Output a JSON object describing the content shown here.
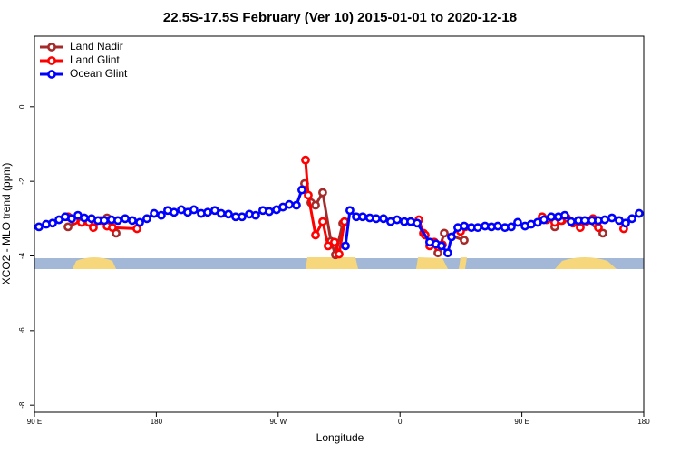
{
  "chart_data": {
    "type": "line",
    "title": "22.5S-17.5S February (Ver 10)   2015-01-01 to 2020-12-18",
    "x_label": "Longitude",
    "y_label": "XCO2 - MLO trend (ppm)",
    "xlim": [
      90,
      540
    ],
    "xticks": [
      {
        "value": 90,
        "label": "90 E"
      },
      {
        "value": 180,
        "label": "180"
      },
      {
        "value": 270,
        "label": "90 W"
      },
      {
        "value": 360,
        "label": "0"
      },
      {
        "value": 450,
        "label": "90 E"
      },
      {
        "value": 540,
        "label": "180"
      }
    ],
    "ylim": [
      -8.19,
      1.89
    ],
    "yticks": [
      0,
      -2,
      -4,
      -6,
      -8
    ],
    "legend": "top-left",
    "series": [
      {
        "name": "Land Nadir",
        "color": "#a52a2a",
        "x": [
          114.8,
          124.8,
          143.6,
          150.3,
          null,
          289.5,
          294.2,
          297.6,
          302.9,
          309.0,
          312.3,
          317.7,
          null,
          388.0,
          392.7,
          407.4,
          null,
          474.3,
          479.7,
          493.1,
          504.5,
          509.8
        ],
        "values": [
          -3.22,
          -3.05,
          -2.98,
          -3.39,
          null,
          -2.06,
          -2.57,
          -2.64,
          -2.3,
          -3.61,
          -3.97,
          -3.13,
          null,
          -3.92,
          -3.39,
          -3.58,
          null,
          -3.22,
          -3.05,
          -3.05,
          -3.13,
          -3.39
        ]
      },
      {
        "name": "Land Glint",
        "color": "#ff0000",
        "x": [
          114.8,
          119.5,
          124.8,
          130.2,
          133.5,
          138.9,
          143.6,
          147.6,
          165.7,
          null,
          290.2,
          292.2,
          297.6,
          302.9,
          306.9,
          311.6,
          315.0,
          319.0,
          null,
          373.9,
          377.3,
          378.6,
          381.9,
          385.3,
          388.0,
          391.3,
          null,
          404.7,
          408.1,
          null,
          465.0,
          468.3,
          474.3,
          479.0,
          483.0,
          487.7,
          493.1,
          497.8,
          502.5,
          506.5,
          null,
          525.2
        ],
        "values": [
          -2.95,
          -3.05,
          -3.1,
          -3.1,
          -3.24,
          -3.05,
          -3.2,
          -3.24,
          -3.27,
          null,
          -1.43,
          -2.37,
          -3.44,
          -3.08,
          -3.73,
          -3.63,
          -3.95,
          -3.08,
          null,
          -3.03,
          -3.39,
          -3.44,
          -3.73,
          -3.63,
          -3.75,
          -3.7,
          null,
          -3.34,
          -3.22,
          null,
          -2.95,
          -3.03,
          -3.1,
          -3.05,
          -2.98,
          -3.12,
          -3.24,
          -3.07,
          -3.0,
          -3.24,
          null,
          -3.27
        ]
      },
      {
        "name": "Ocean Glint",
        "color": "#0000ff",
        "x": [
          93.3,
          98.7,
          103.4,
          108.1,
          112.8,
          117.5,
          122.1,
          126.8,
          132.2,
          136.9,
          141.6,
          146.9,
          151.6,
          157.0,
          162.3,
          167.7,
          173.0,
          178.4,
          183.7,
          188.4,
          193.1,
          198.5,
          203.2,
          207.8,
          213.2,
          217.9,
          223.2,
          227.9,
          233.3,
          238.6,
          243.3,
          248.7,
          253.4,
          258.7,
          263.4,
          268.8,
          273.5,
          278.2,
          283.5,
          287.5,
          null,
          319.7,
          323.0,
          327.7,
          332.4,
          337.7,
          342.4,
          347.8,
          353.1,
          357.8,
          363.2,
          367.9,
          372.6,
          381.9,
          386.6,
          390.6,
          395.3,
          398.0,
          402.7,
          407.4,
          412.7,
          417.4,
          422.8,
          427.5,
          432.2,
          437.5,
          442.2,
          446.9,
          452.3,
          456.9,
          461.6,
          466.3,
          471.7,
          477.0,
          481.7,
          486.4,
          491.8,
          496.4,
          501.8,
          506.5,
          511.2,
          516.5,
          521.9,
          526.6,
          531.3,
          536.6
        ],
        "values": [
          -3.22,
          -3.15,
          -3.12,
          -3.03,
          -2.95,
          -3.0,
          -2.91,
          -2.98,
          -3.0,
          -3.05,
          -3.05,
          -3.03,
          -3.05,
          -3.0,
          -3.05,
          -3.1,
          -3.0,
          -2.86,
          -2.91,
          -2.78,
          -2.83,
          -2.76,
          -2.83,
          -2.76,
          -2.86,
          -2.83,
          -2.78,
          -2.86,
          -2.88,
          -2.95,
          -2.95,
          -2.88,
          -2.91,
          -2.78,
          -2.81,
          -2.76,
          -2.69,
          -2.62,
          -2.64,
          -2.23,
          null,
          -3.73,
          -2.78,
          -2.95,
          -2.95,
          -2.98,
          -3.0,
          -3.0,
          -3.08,
          -3.03,
          -3.08,
          -3.08,
          -3.12,
          -3.63,
          -3.68,
          -3.73,
          -3.92,
          -3.49,
          -3.24,
          -3.2,
          -3.24,
          -3.24,
          -3.2,
          -3.22,
          -3.2,
          -3.24,
          -3.22,
          -3.1,
          -3.2,
          -3.15,
          -3.1,
          -3.03,
          -2.95,
          -2.95,
          -2.91,
          -3.08,
          -3.05,
          -3.05,
          -3.05,
          -3.05,
          -3.03,
          -2.98,
          -3.05,
          -3.12,
          -3.0,
          -2.86
        ]
      }
    ]
  }
}
